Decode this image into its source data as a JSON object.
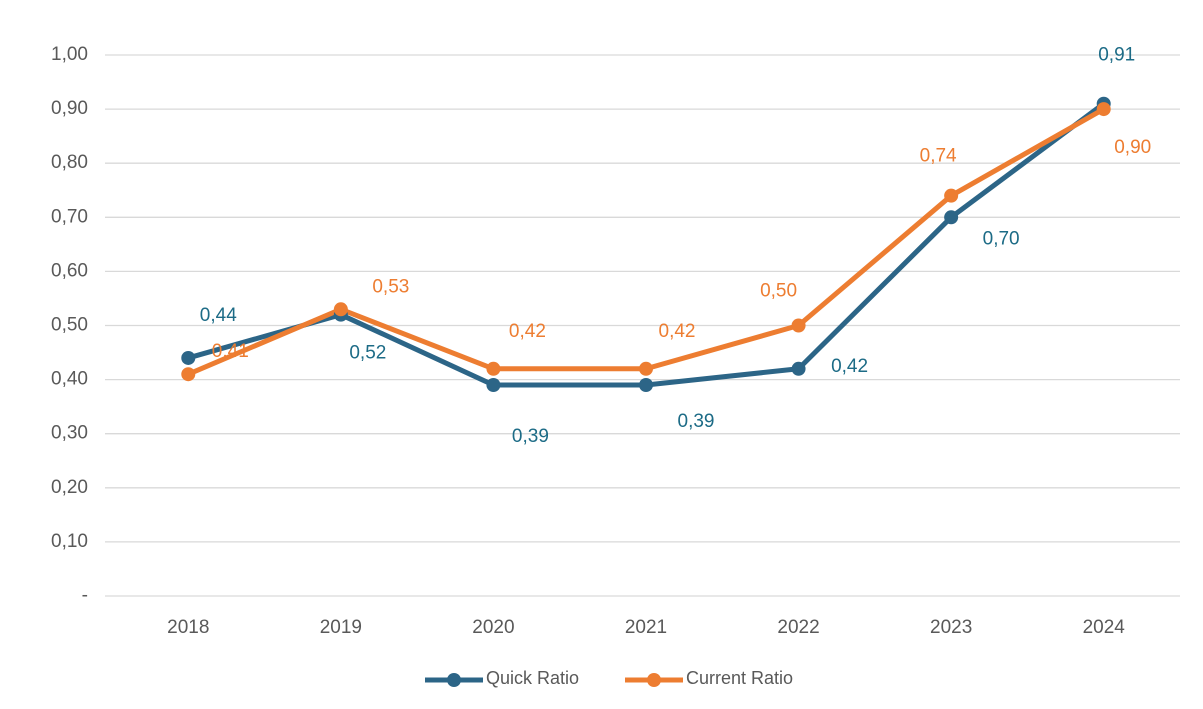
{
  "chart_data": {
    "type": "line",
    "categories": [
      "2018",
      "2019",
      "2020",
      "2021",
      "2022",
      "2023",
      "2024"
    ],
    "series": [
      {
        "name": "Quick Ratio",
        "color": "#2c6587",
        "label_color": "#1c6b86",
        "values": [
          0.44,
          0.52,
          0.39,
          0.39,
          0.42,
          0.7,
          0.91
        ],
        "value_labels": [
          "0,44",
          "0,52",
          "0,39",
          "0,39",
          "0,42",
          "0,70",
          "0,91"
        ]
      },
      {
        "name": "Current Ratio",
        "color": "#ed7d31",
        "label_color": "#ed7d31",
        "values": [
          0.41,
          0.53,
          0.42,
          0.42,
          0.5,
          0.74,
          0.9
        ],
        "value_labels": [
          "0,41",
          "0,53",
          "0,42",
          "0,42",
          "0,50",
          "0,74",
          "0,90"
        ]
      }
    ],
    "ylim": [
      0,
      1
    ],
    "yticks": [
      {
        "value": 0,
        "label": "-"
      },
      {
        "value": 0.1,
        "label": "0,10"
      },
      {
        "value": 0.2,
        "label": "0,20"
      },
      {
        "value": 0.3,
        "label": "0,30"
      },
      {
        "value": 0.4,
        "label": "0,40"
      },
      {
        "value": 0.5,
        "label": "0,50"
      },
      {
        "value": 0.6,
        "label": "0,60"
      },
      {
        "value": 0.7,
        "label": "0,70"
      },
      {
        "value": 0.8,
        "label": "0,80"
      },
      {
        "value": 0.9,
        "label": "0,90"
      },
      {
        "value": 1,
        "label": "1,00"
      }
    ],
    "grid": true,
    "legend": "bottom"
  }
}
